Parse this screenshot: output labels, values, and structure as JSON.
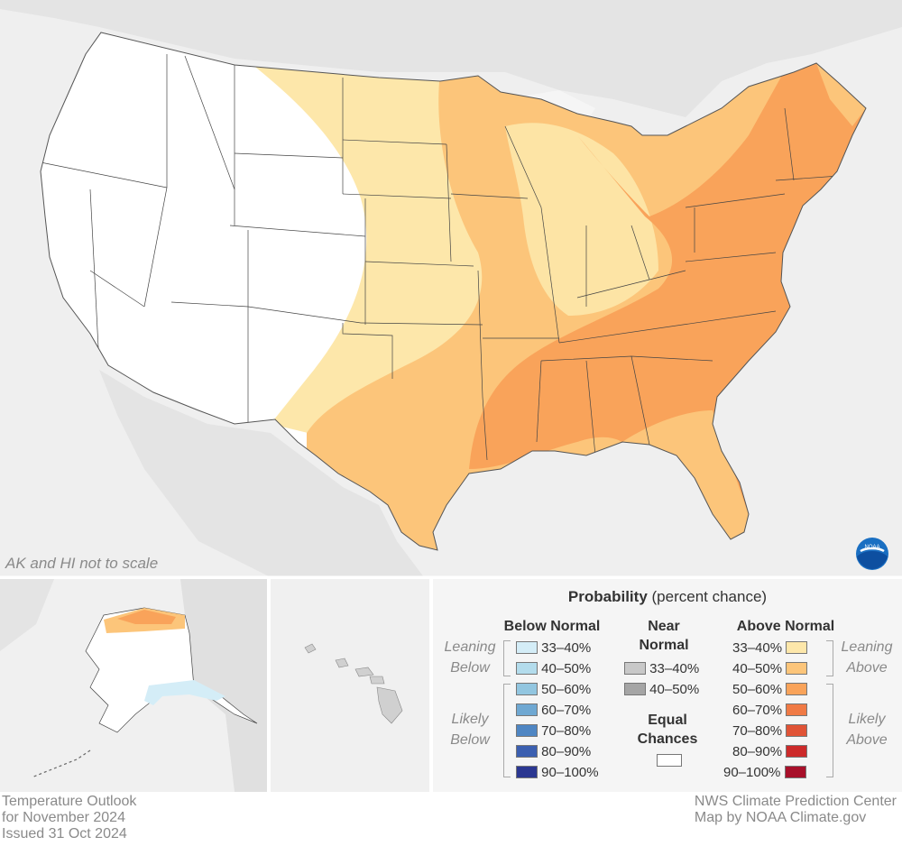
{
  "map": {
    "note": "AK and HI not to scale",
    "logo": "noaa-logo"
  },
  "legend": {
    "title_bold": "Probability",
    "title_rest": " (percent chance)",
    "below": {
      "heading": "Below Normal",
      "leaning_label": [
        "Leaning",
        "Below"
      ],
      "likely_label": [
        "Likely",
        "Below"
      ],
      "rows": [
        {
          "label": "33–40%",
          "color": "#d4edf7"
        },
        {
          "label": "40–50%",
          "color": "#b3dcec"
        },
        {
          "label": "50–60%",
          "color": "#92c6e0"
        },
        {
          "label": "60–70%",
          "color": "#6fa8d2"
        },
        {
          "label": "70–80%",
          "color": "#4f86c3"
        },
        {
          "label": "80–90%",
          "color": "#3b5fb0"
        },
        {
          "label": "90–100%",
          "color": "#2b3791"
        }
      ]
    },
    "near": {
      "heading": [
        "Near",
        "Normal"
      ],
      "rows": [
        {
          "label": "33–40%",
          "color": "#c8c8c8"
        },
        {
          "label": "40–50%",
          "color": "#a5a5a5"
        }
      ],
      "equal_heading": [
        "Equal",
        "Chances"
      ],
      "equal_color": "#ffffff"
    },
    "above": {
      "heading": "Above Normal",
      "leaning_label": [
        "Leaning",
        "Above"
      ],
      "likely_label": [
        "Likely",
        "Above"
      ],
      "rows": [
        {
          "label": "33–40%",
          "color": "#fde7aa"
        },
        {
          "label": "40–50%",
          "color": "#fcc57a"
        },
        {
          "label": "50–60%",
          "color": "#f9a35a"
        },
        {
          "label": "60–70%",
          "color": "#f07a45"
        },
        {
          "label": "70–80%",
          "color": "#e05336"
        },
        {
          "label": "80–90%",
          "color": "#cc2a2a"
        },
        {
          "label": "90–100%",
          "color": "#a8102a"
        }
      ]
    }
  },
  "footer": {
    "left": [
      "Temperature Outlook",
      "for November 2024",
      "Issued 31 Oct 2024"
    ],
    "right": [
      "NWS Climate Prediction Center",
      "Map by NOAA Climate.gov"
    ]
  }
}
